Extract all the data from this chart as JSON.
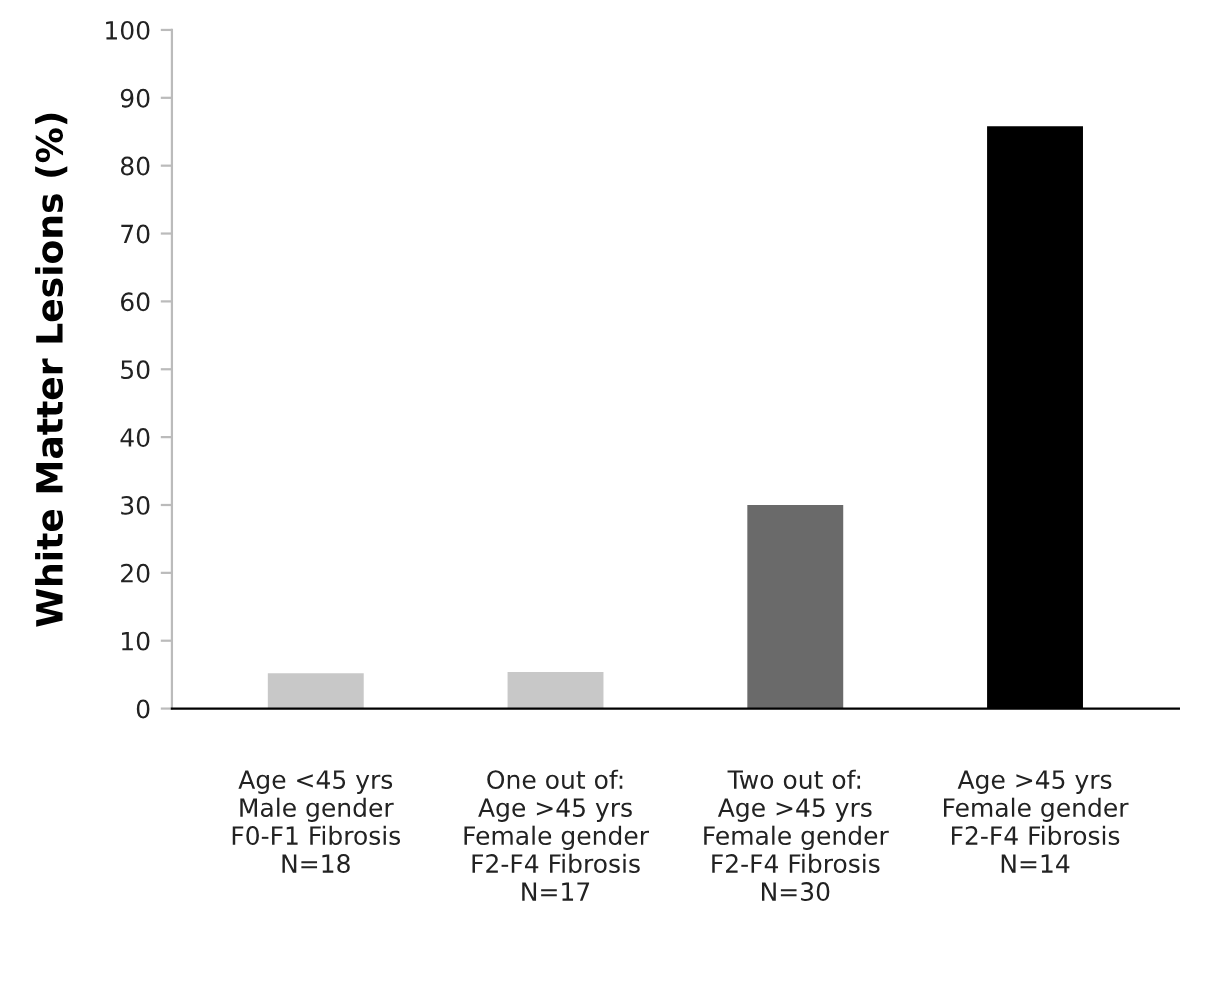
{
  "chart_data": {
    "type": "bar",
    "ylabel": "White Matter Lesions (%)",
    "categories": [
      "Age <45 yrs\nMale gender\nF0-F1 Fibrosis\nN=18",
      "One out of:\nAge >45 yrs\nFemale gender\nF2-F4 Fibrosis\nN=17",
      "Two out of:\nAge >45 yrs\nFemale gender\nF2-F4 Fibrosis\nN=30",
      "Age >45 yrs\nFemale gender\nF2-F4 Fibrosis\nN=14"
    ],
    "values": [
      5.2,
      5.4,
      30,
      85.8
    ],
    "colors": [
      "#c8c8c8",
      "#c8c8c8",
      "#6a6a6a",
      "#000000"
    ],
    "ylim": [
      0,
      100
    ],
    "yticks": [
      0,
      10,
      20,
      30,
      40,
      50,
      60,
      70,
      80,
      90,
      100
    ],
    "grid": false
  }
}
